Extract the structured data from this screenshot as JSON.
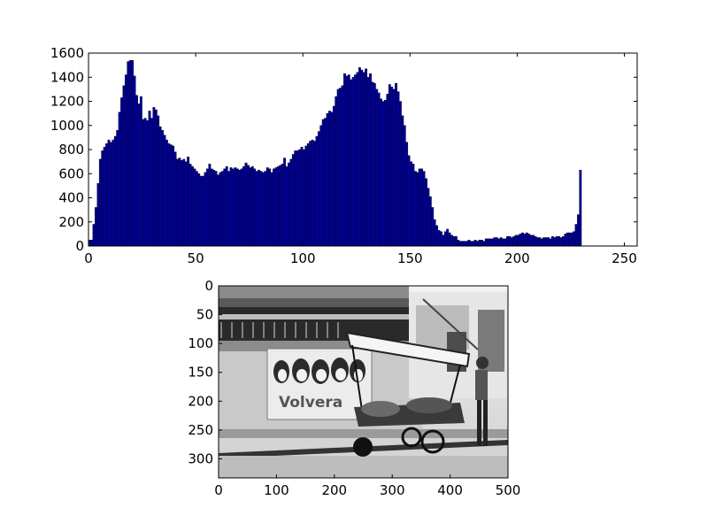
{
  "figure": {
    "background": "#ffffff",
    "bar_color": "#0000a0",
    "bar_edge": "#000000"
  },
  "chart_data": [
    {
      "type": "bar",
      "xlim": [
        0,
        256
      ],
      "ylim": [
        0,
        1600
      ],
      "xticks": [
        0,
        50,
        100,
        150,
        200,
        250
      ],
      "yticks": [
        0,
        200,
        400,
        600,
        800,
        1000,
        1200,
        1400,
        1600
      ],
      "bar_width": 1,
      "grid": false,
      "values": [
        50,
        50,
        180,
        320,
        520,
        720,
        790,
        820,
        850,
        880,
        860,
        880,
        910,
        960,
        1110,
        1230,
        1330,
        1420,
        1530,
        1540,
        1540,
        1410,
        1250,
        1180,
        1240,
        1050,
        1060,
        1040,
        1120,
        1060,
        1150,
        1130,
        1080,
        990,
        960,
        920,
        880,
        850,
        840,
        830,
        780,
        720,
        730,
        710,
        720,
        700,
        740,
        680,
        660,
        640,
        620,
        600,
        580,
        580,
        610,
        640,
        680,
        640,
        630,
        620,
        590,
        610,
        620,
        640,
        660,
        620,
        650,
        640,
        650,
        640,
        630,
        640,
        660,
        690,
        670,
        650,
        660,
        640,
        620,
        630,
        620,
        610,
        620,
        650,
        640,
        610,
        640,
        650,
        660,
        670,
        680,
        730,
        660,
        690,
        720,
        760,
        790,
        790,
        800,
        820,
        800,
        830,
        850,
        870,
        880,
        870,
        910,
        950,
        1000,
        1050,
        1060,
        1100,
        1120,
        1110,
        1160,
        1240,
        1300,
        1310,
        1330,
        1430,
        1410,
        1420,
        1380,
        1400,
        1420,
        1440,
        1480,
        1460,
        1440,
        1470,
        1400,
        1430,
        1360,
        1350,
        1300,
        1270,
        1220,
        1200,
        1210,
        1260,
        1340,
        1320,
        1300,
        1350,
        1280,
        1200,
        1080,
        1000,
        860,
        750,
        700,
        680,
        620,
        610,
        640,
        640,
        620,
        560,
        480,
        410,
        320,
        220,
        170,
        130,
        120,
        90,
        120,
        140,
        110,
        90,
        80,
        80,
        50,
        40,
        40,
        40,
        40,
        50,
        40,
        40,
        50,
        40,
        50,
        50,
        40,
        60,
        60,
        60,
        60,
        70,
        70,
        60,
        70,
        60,
        60,
        80,
        80,
        70,
        80,
        90,
        90,
        100,
        110,
        100,
        110,
        100,
        90,
        90,
        80,
        70,
        70,
        60,
        70,
        70,
        70,
        60,
        80,
        70,
        80,
        80,
        70,
        80,
        100,
        110,
        110,
        110,
        120,
        180,
        260,
        630
      ]
    },
    {
      "type": "image",
      "description_of_axes_only": "grayscale photo shown with pixel axes",
      "xlim": [
        0,
        500
      ],
      "ylim": [
        333,
        0
      ],
      "xticks": [
        0,
        100,
        200,
        300,
        400,
        500
      ],
      "yticks": [
        0,
        50,
        100,
        150,
        200,
        250,
        300
      ]
    }
  ],
  "photo": {
    "mural_text": "Volvera"
  }
}
